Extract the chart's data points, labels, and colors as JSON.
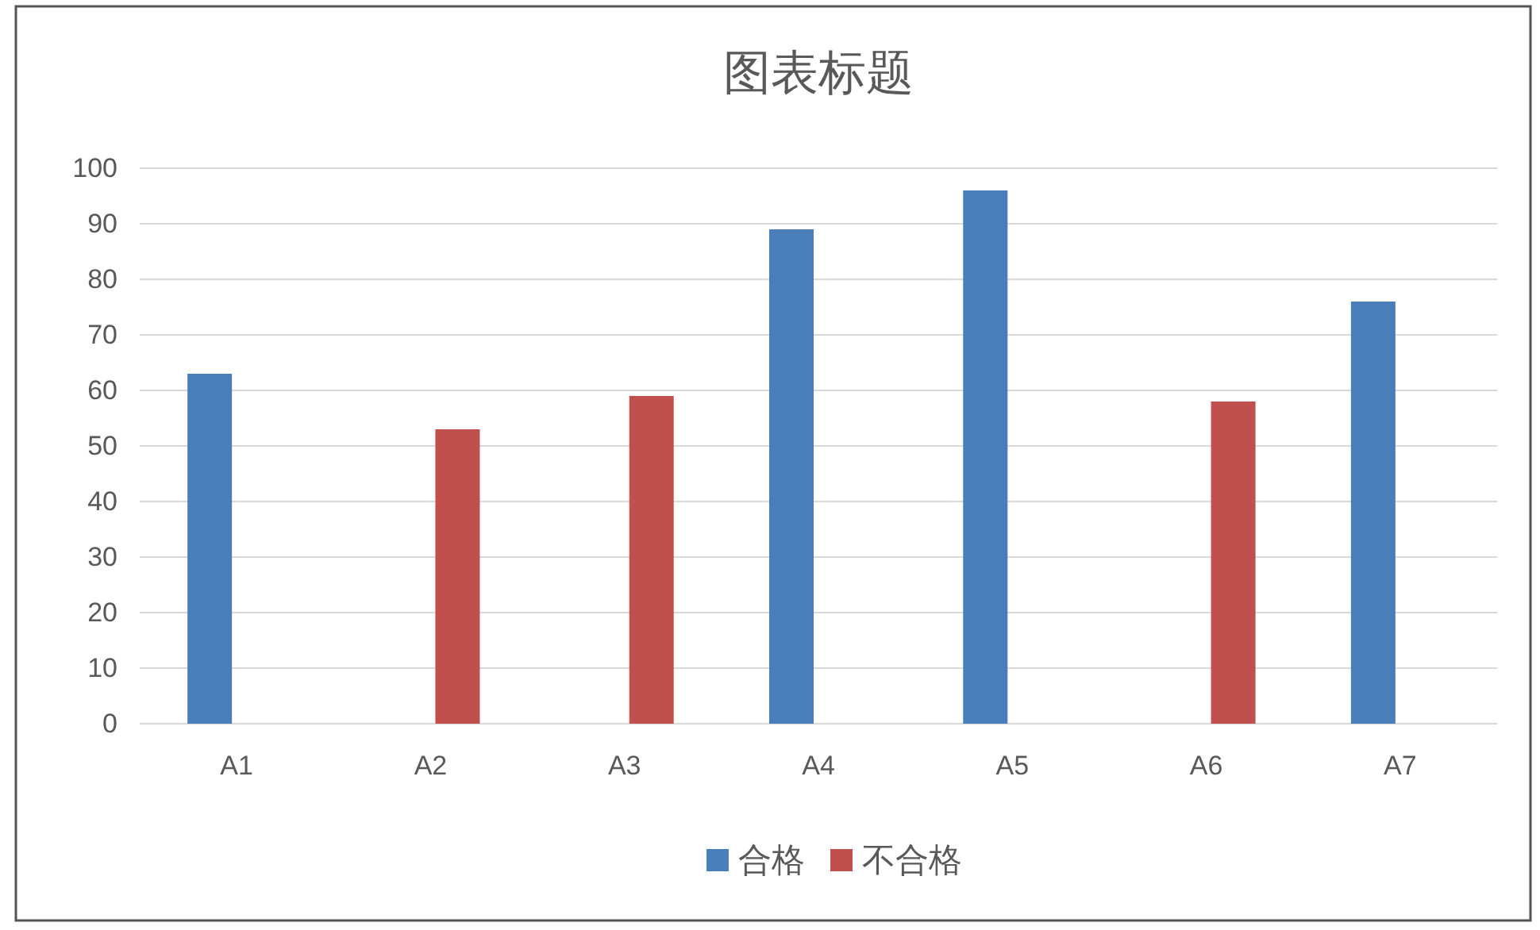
{
  "chart_data": {
    "type": "bar",
    "title": "图表标题",
    "categories": [
      "A1",
      "A2",
      "A3",
      "A4",
      "A5",
      "A6",
      "A7"
    ],
    "series": [
      {
        "name": "合格",
        "color": "#4a7ebb",
        "values": [
          63,
          null,
          null,
          89,
          96,
          null,
          76
        ]
      },
      {
        "name": "不合格",
        "color": "#c0504d",
        "values": [
          null,
          53,
          59,
          null,
          null,
          58,
          null
        ]
      }
    ],
    "ylim": [
      0,
      100
    ],
    "yticks": [
      0,
      10,
      20,
      30,
      40,
      50,
      60,
      70,
      80,
      90,
      100
    ],
    "grid": "y",
    "legend": "bottom"
  }
}
